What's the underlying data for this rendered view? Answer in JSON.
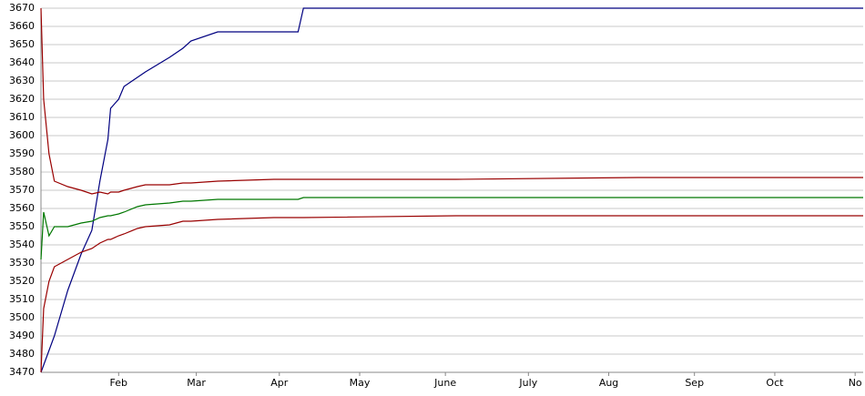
{
  "chart_data": {
    "type": "line",
    "x": [
      0,
      1,
      3,
      5,
      10,
      15,
      19,
      22,
      25,
      26,
      29,
      31,
      36,
      39,
      48,
      53,
      56,
      66,
      87,
      96,
      98,
      155,
      223,
      307
    ],
    "series": [
      {
        "color": "#000080",
        "values": [
          3470,
          3474,
          3482,
          3490,
          3515,
          3535,
          3548,
          3575,
          3598,
          3615,
          3620,
          3627,
          3632,
          3635,
          3643,
          3648,
          3652,
          3657,
          3657,
          3657,
          3670,
          3670,
          3670,
          3670
        ]
      },
      {
        "color": "#990000",
        "values": [
          3670,
          3620,
          3590,
          3575,
          3572,
          3570,
          3568,
          3569,
          3568,
          3569,
          3569,
          3570,
          3572,
          3573,
          3573,
          3574,
          3574,
          3575,
          3576,
          3576,
          3576,
          3576,
          3577,
          3577
        ]
      },
      {
        "color": "#007700",
        "values": [
          3532,
          3558,
          3545,
          3550,
          3550,
          3552,
          3553,
          3555,
          3556,
          3556,
          3557,
          3558,
          3561,
          3562,
          3563,
          3564,
          3564,
          3565,
          3565,
          3565,
          3566,
          3566,
          3566,
          3566
        ]
      },
      {
        "color": "#990000",
        "values": [
          3470,
          3505,
          3520,
          3528,
          3532,
          3536,
          3538,
          3541,
          3543,
          3543,
          3545,
          3546,
          3549,
          3550,
          3551,
          3553,
          3553,
          3554,
          3555,
          3555,
          3555,
          3556,
          3556,
          3556
        ]
      }
    ],
    "xlim": [
      0,
      307
    ],
    "xticks": [
      {
        "value": 29,
        "label": "Feb"
      },
      {
        "value": 58,
        "label": "Mar"
      },
      {
        "value": 89,
        "label": "Apr"
      },
      {
        "value": 119,
        "label": "May"
      },
      {
        "value": 151,
        "label": "June"
      },
      {
        "value": 182,
        "label": "July"
      },
      {
        "value": 212,
        "label": "Aug"
      },
      {
        "value": 244,
        "label": "Sep"
      },
      {
        "value": 274,
        "label": "Oct"
      },
      {
        "value": 304,
        "label": "No"
      }
    ],
    "ylim": [
      3470,
      3670
    ],
    "yticks": [
      3470,
      3480,
      3490,
      3500,
      3510,
      3520,
      3530,
      3540,
      3550,
      3560,
      3570,
      3580,
      3590,
      3600,
      3610,
      3620,
      3630,
      3640,
      3650,
      3660,
      3670
    ],
    "grid": true
  }
}
